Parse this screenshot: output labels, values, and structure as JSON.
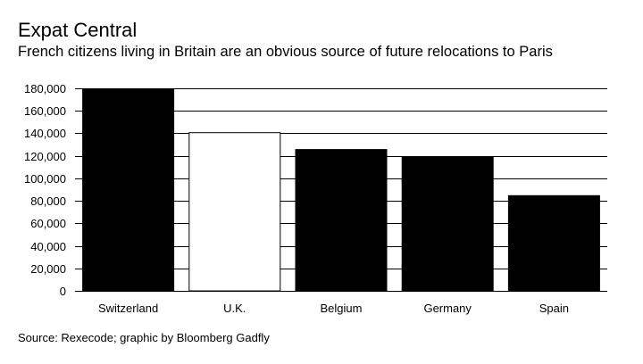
{
  "chart_data": {
    "type": "bar",
    "title": "Expat Central",
    "subtitle": "French citizens living in Britain are an obvious source of future relocations to Paris",
    "categories": [
      "Switzerland",
      "U.K.",
      "Belgium",
      "Germany",
      "Spain"
    ],
    "values": [
      180000,
      141000,
      126000,
      119000,
      85000
    ],
    "highlight_index": 1,
    "ylim": [
      0,
      180000
    ],
    "yticks": [
      0,
      20000,
      40000,
      60000,
      80000,
      100000,
      120000,
      140000,
      160000,
      180000
    ],
    "ytick_labels": [
      "0",
      "20,000",
      "40,000",
      "60,000",
      "80,000",
      "100,000",
      "120,000",
      "140,000",
      "160,000",
      "180,000"
    ],
    "xlabel": "",
    "ylabel": "",
    "grid": true,
    "legend": "none",
    "source": "Source: Rexecode; graphic by Bloomberg Gadfly",
    "colors": {
      "bar": "#000000",
      "highlight_fill": "#ffffff",
      "highlight_stroke": "#000000",
      "grid": "#000000",
      "text": "#000000"
    }
  }
}
